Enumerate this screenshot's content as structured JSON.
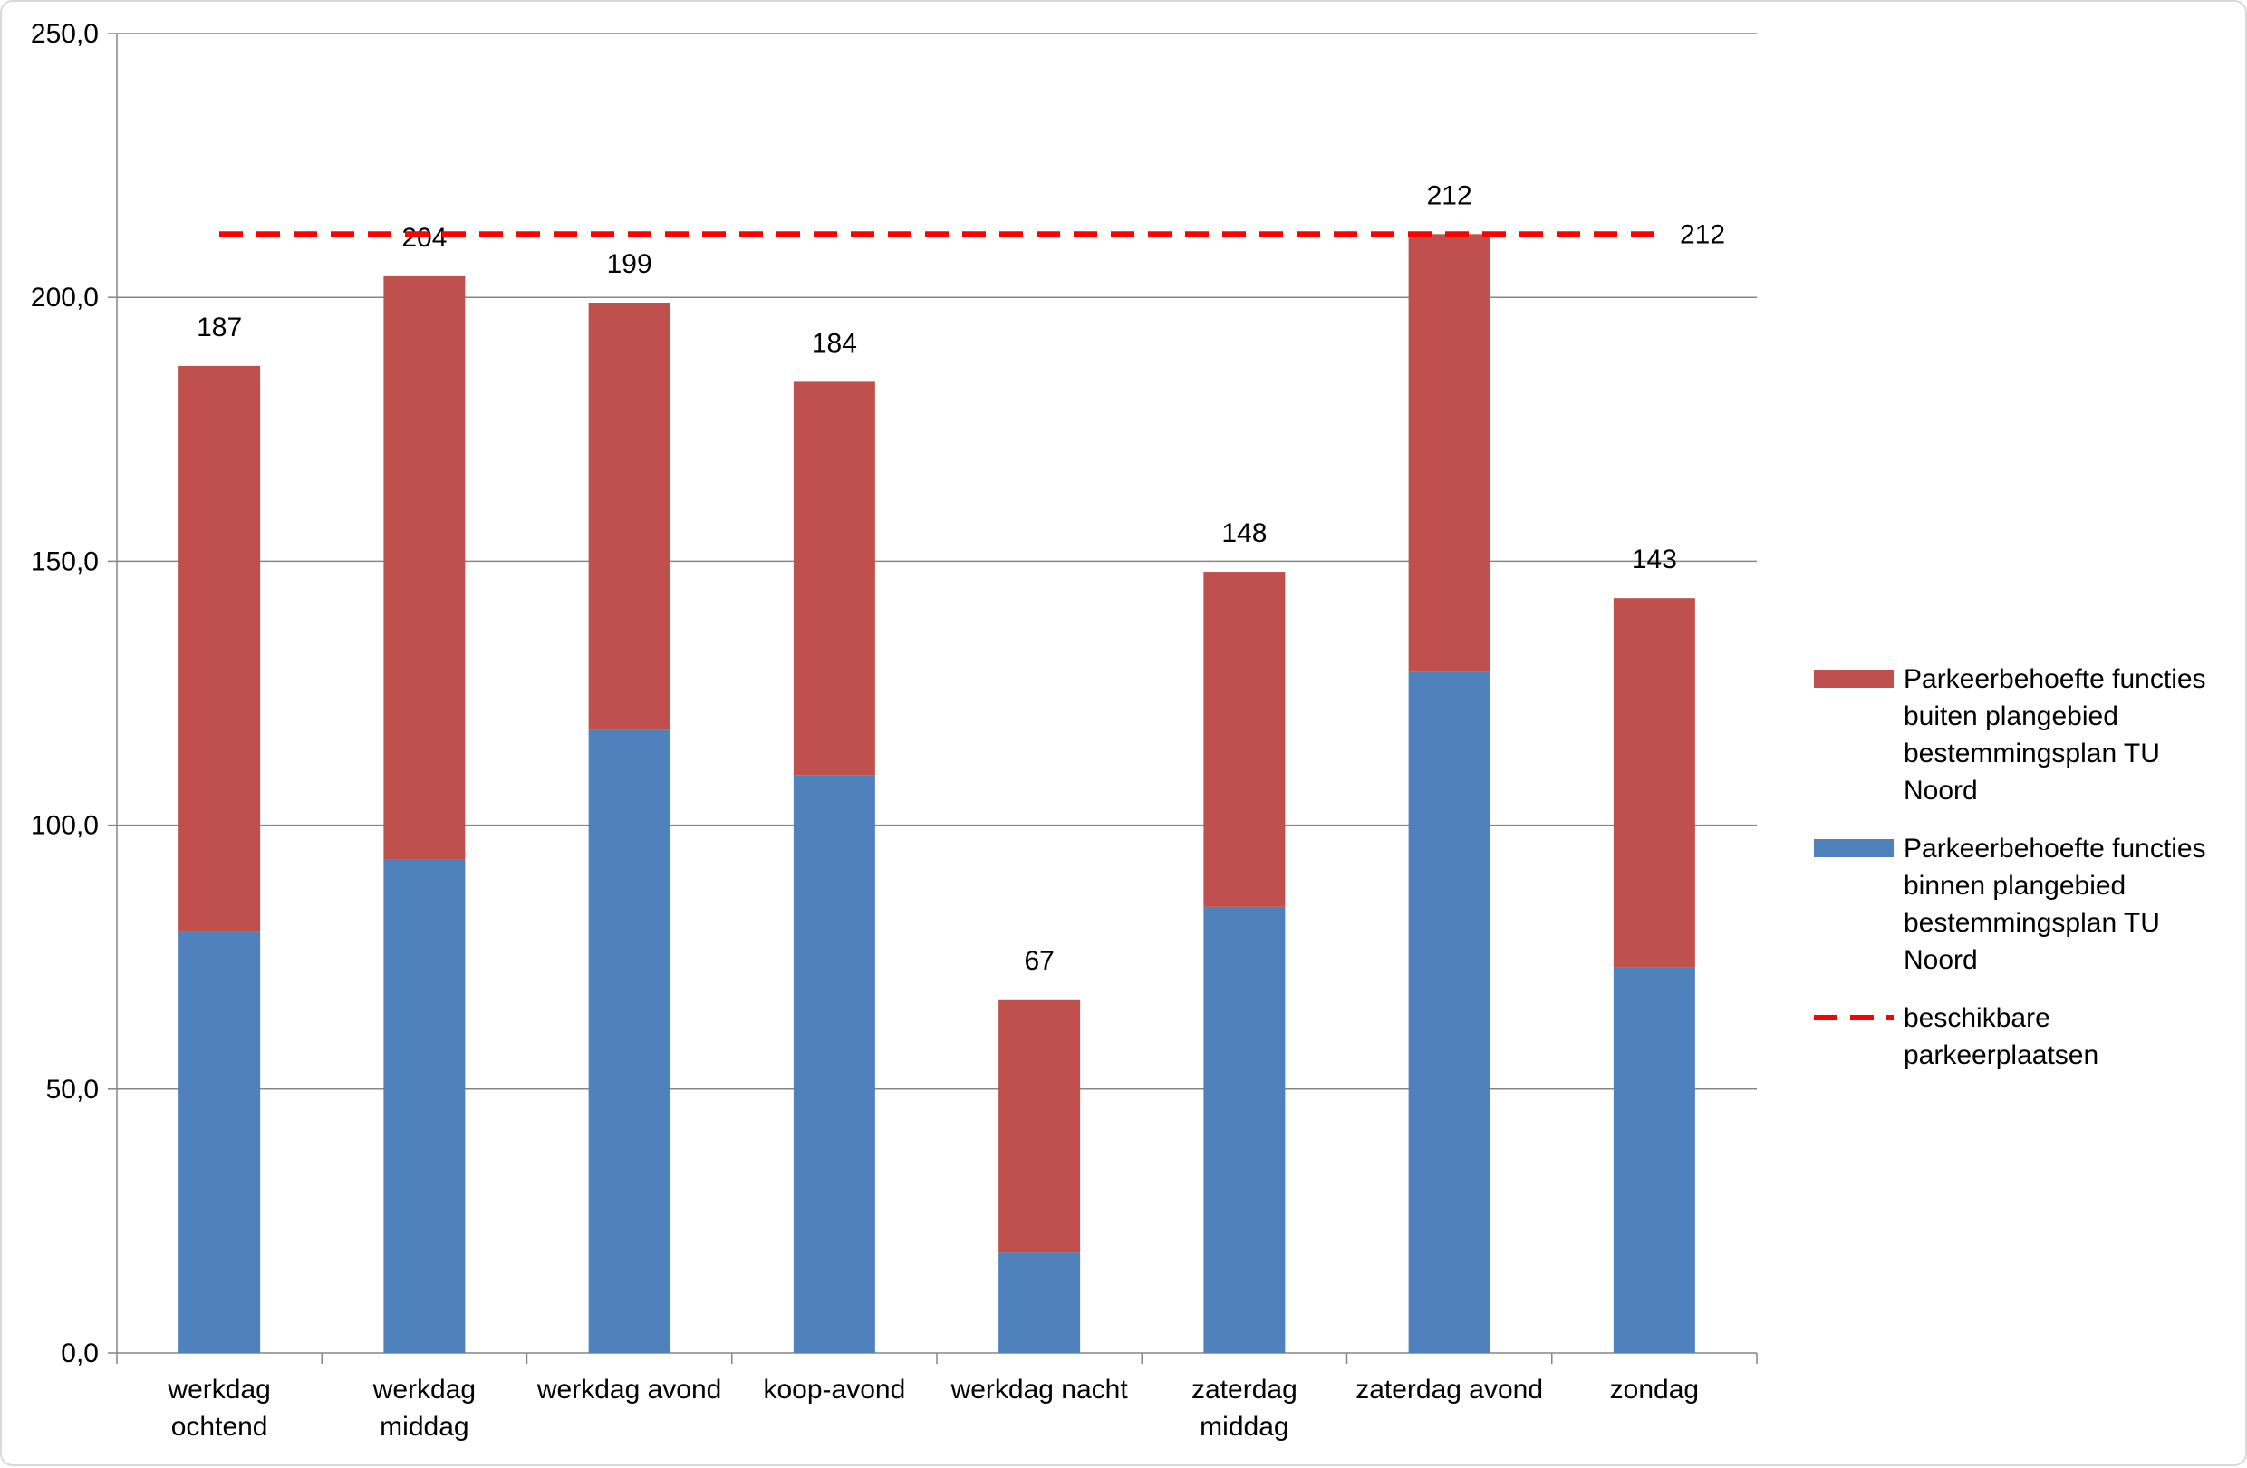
{
  "chart_data": {
    "type": "bar",
    "stacked": true,
    "title": "",
    "xlabel": "",
    "ylabel": "",
    "ylim": [
      0,
      250
    ],
    "y_ticks": [
      "0,0",
      "50,0",
      "100,0",
      "150,0",
      "200,0",
      "250,0"
    ],
    "y_tick_values": [
      0,
      50,
      100,
      150,
      200,
      250
    ],
    "grid": true,
    "legend_position": "right",
    "categories": [
      [
        "werkdag",
        "ochtend"
      ],
      [
        "werkdag",
        "middag"
      ],
      [
        "werkdag avond"
      ],
      [
        "koop-avond"
      ],
      [
        "werkdag nacht"
      ],
      [
        "zaterdag",
        "middag"
      ],
      [
        "zaterdag avond"
      ],
      [
        "zondag"
      ]
    ],
    "series": [
      {
        "name": "Parkeerbehoefte functies binnen plangebied bestemmingsplan TU Noord",
        "legend_lines": [
          "Parkeerbehoefte functies",
          "binnen plangebied",
          "bestemmingsplan TU",
          "Noord"
        ],
        "color": "#4f81bd",
        "values": [
          80,
          93.5,
          118,
          109.5,
          19,
          84.5,
          129,
          73
        ]
      },
      {
        "name": "Parkeerbehoefte functies buiten plangebied bestemmingsplan TU Noord",
        "legend_lines": [
          "Parkeerbehoefte functies",
          "buiten plangebied",
          "bestemmingsplan TU",
          "Noord"
        ],
        "color": "#c0504d",
        "values": [
          107,
          110.5,
          81,
          74.5,
          48,
          63.5,
          83,
          70
        ]
      }
    ],
    "totals": [
      "187",
      "204",
      "199",
      "184",
      "67",
      "148",
      "212",
      "143"
    ],
    "reference_line": {
      "name": "beschikbare parkeerplaatsen",
      "legend_lines": [
        "beschikbare",
        "parkeerplaatsen"
      ],
      "value": 212,
      "label": "212",
      "color": "#ff0000",
      "style": "dashed"
    }
  }
}
